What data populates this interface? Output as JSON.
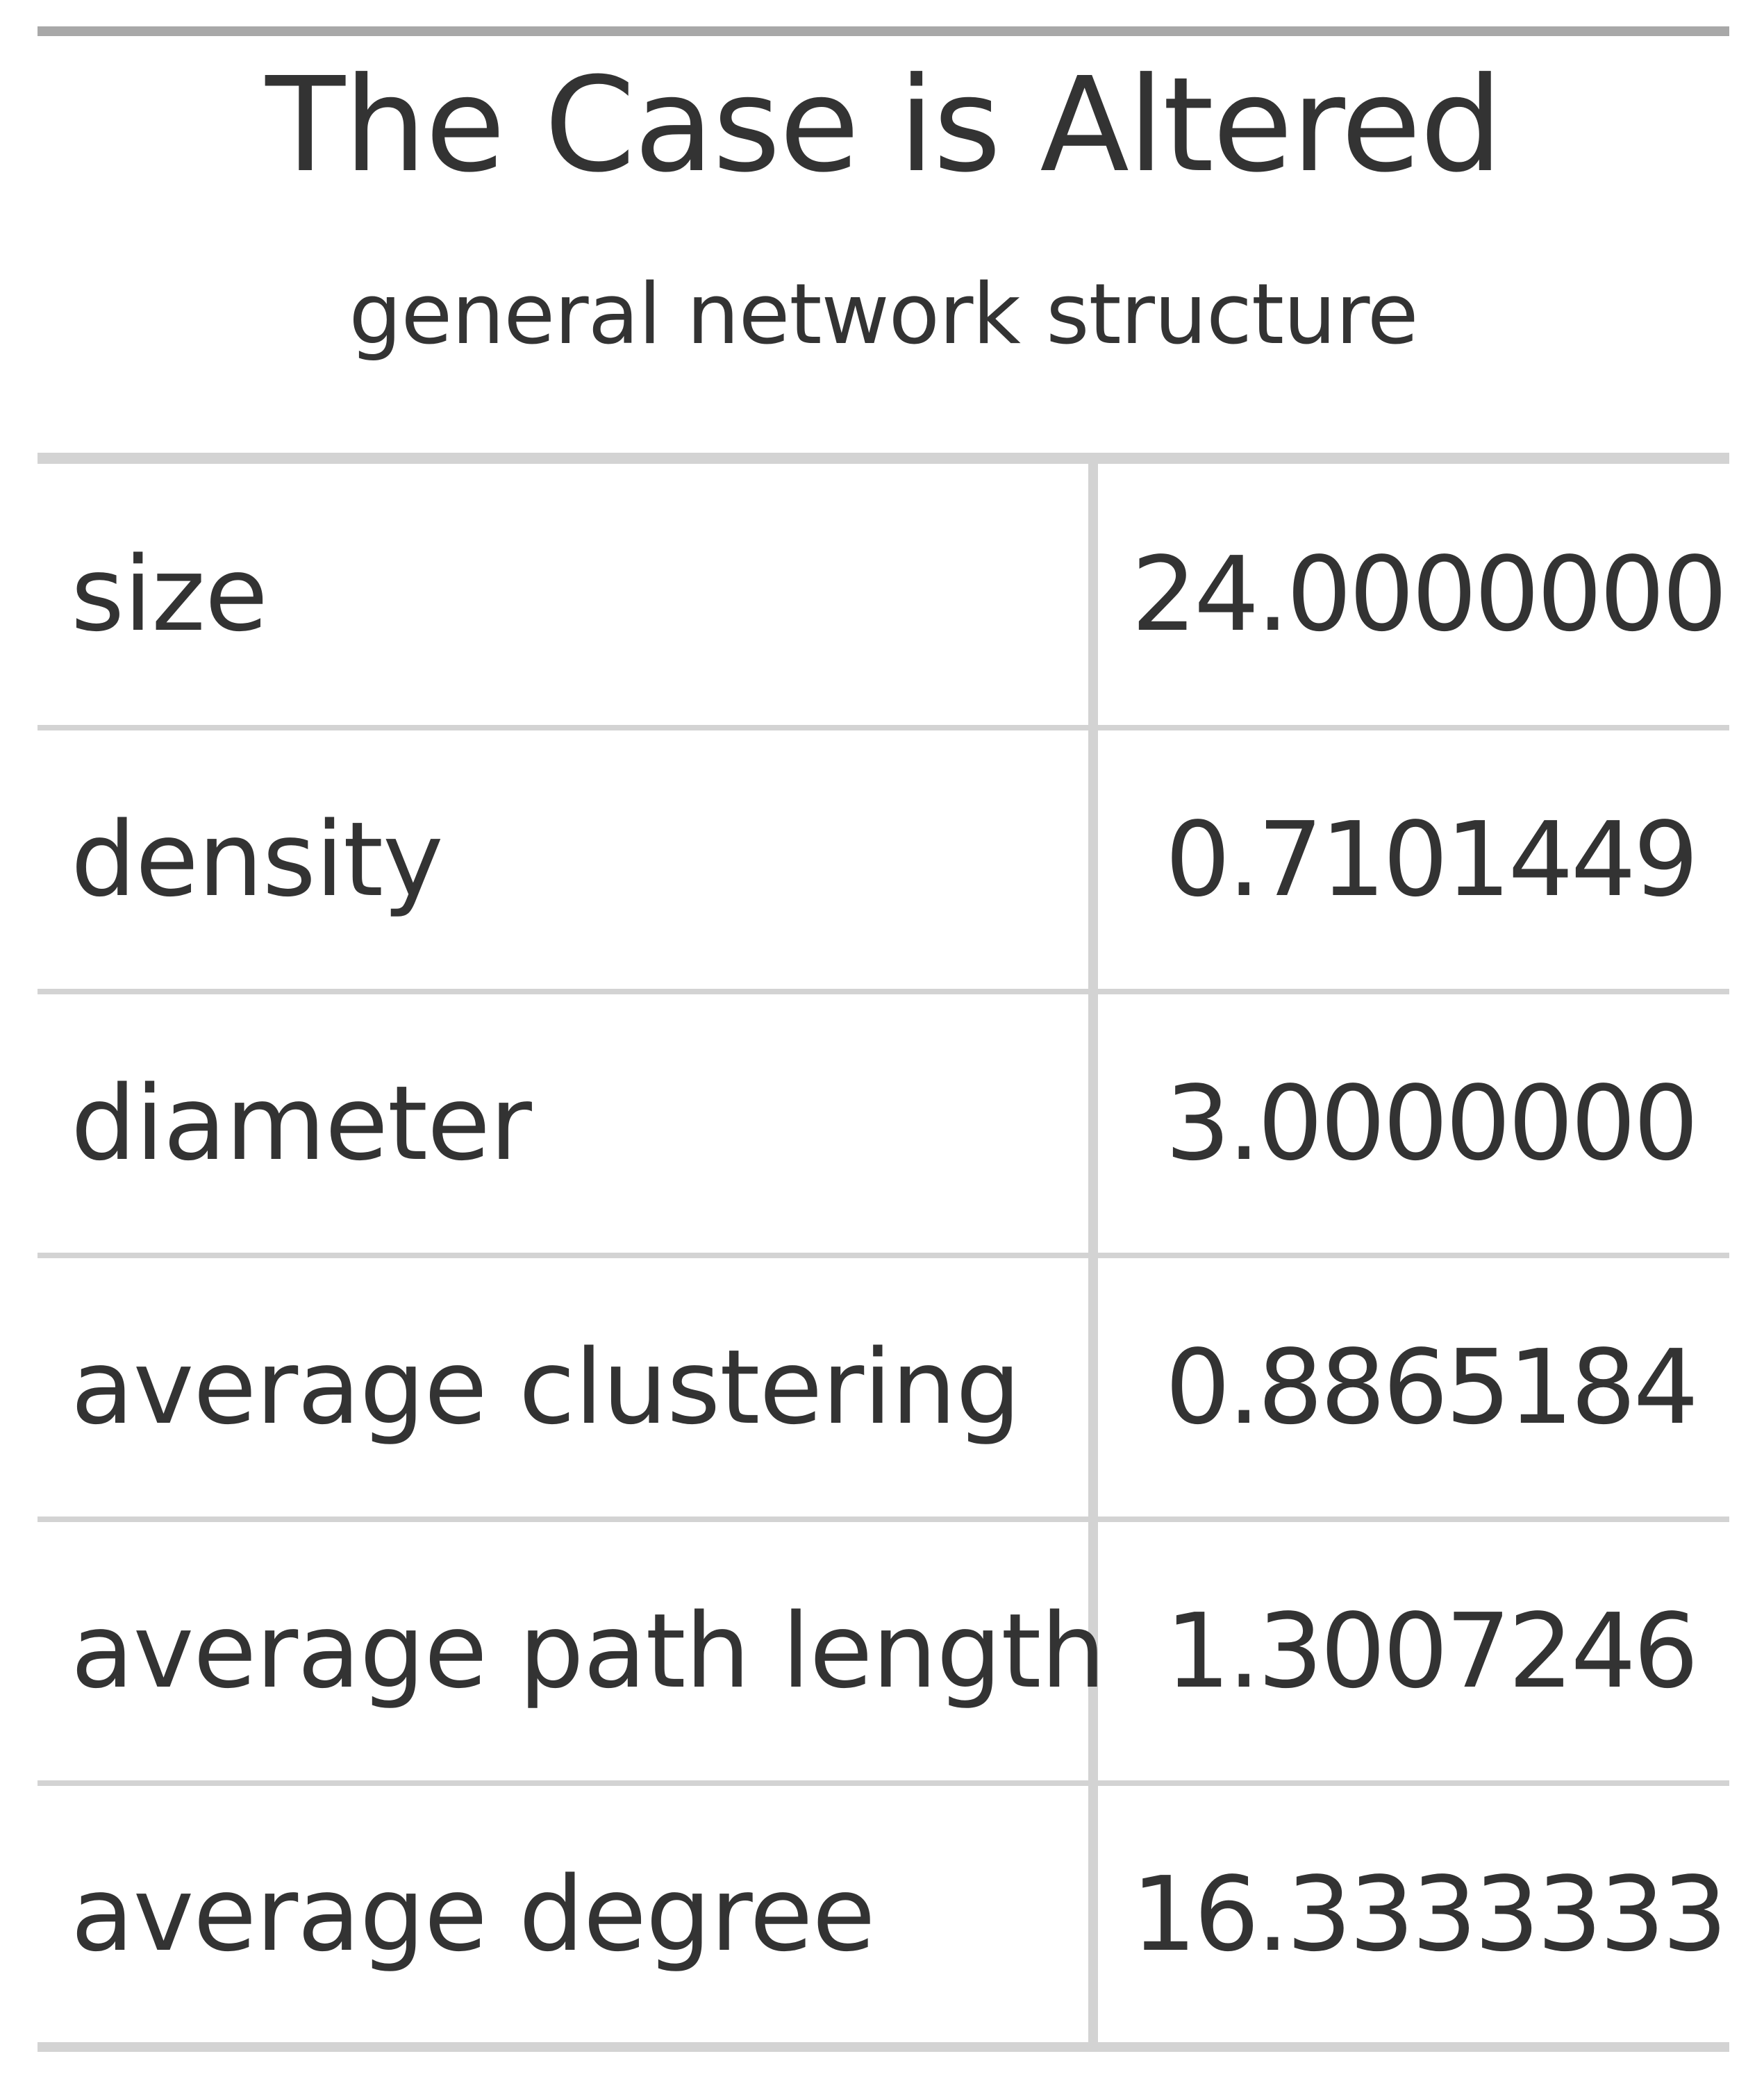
{
  "table": {
    "title": "The Case is Altered",
    "subtitle": "general network structure",
    "rows": [
      {
        "label": "size",
        "value": "24.0000000"
      },
      {
        "label": "density",
        "value": "0.7101449"
      },
      {
        "label": "diameter",
        "value": "3.0000000"
      },
      {
        "label": "average clustering",
        "value": "0.8865184"
      },
      {
        "label": "average path length",
        "value": "1.3007246"
      },
      {
        "label": "average degree",
        "value": "16.3333333"
      }
    ]
  },
  "colors": {
    "text": "#333333",
    "top_rule": "#a8a8a8",
    "rule": "#d3d3d3",
    "background": "#ffffff"
  }
}
